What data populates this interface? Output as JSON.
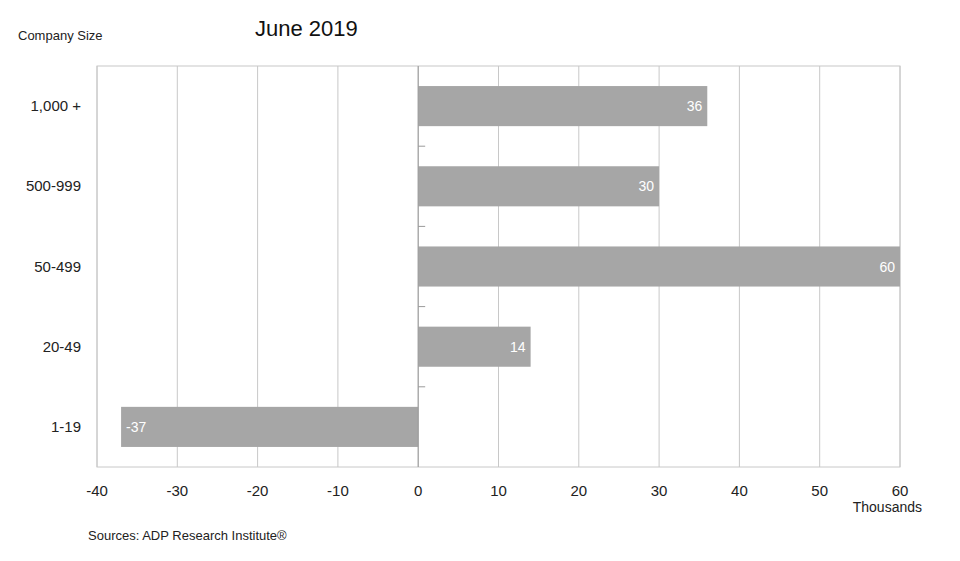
{
  "chart_data": {
    "type": "bar",
    "title": "June 2019",
    "ylabel": "Company Size",
    "xlabel": "Thousands",
    "source": "Sources: ADP Research Institute®",
    "categories": [
      "1,000 +",
      "500-999",
      "50-499",
      "20-49",
      "1-19"
    ],
    "values": [
      36,
      30,
      60,
      14,
      -37
    ],
    "color": "#a6a6a6",
    "orientation": "horizontal",
    "data_labels": true,
    "grid": true,
    "xlim": [
      -40,
      60
    ],
    "xticks": [
      -40,
      -30,
      -20,
      -10,
      0,
      10,
      20,
      30,
      40,
      50,
      60
    ]
  }
}
